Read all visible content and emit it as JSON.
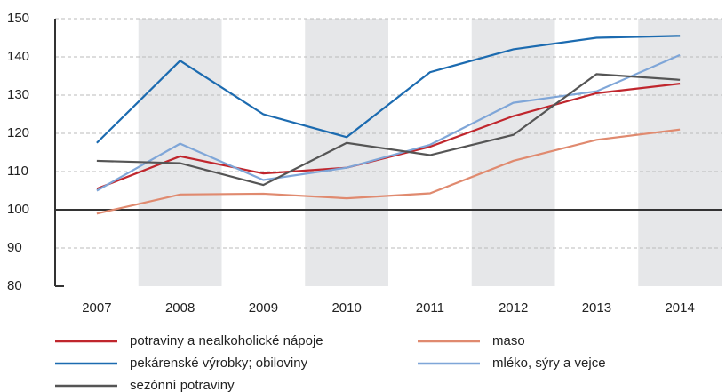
{
  "chart_data": {
    "type": "line",
    "categories": [
      "2007",
      "2008",
      "2009",
      "2010",
      "2011",
      "2012",
      "2013",
      "2014"
    ],
    "series": [
      {
        "name": "potraviny a nealkoholické nápoje",
        "color": "#c0262d",
        "values": [
          105.5,
          114,
          109.5,
          111,
          116.5,
          124.5,
          130.5,
          133
        ]
      },
      {
        "name": "maso",
        "color": "#e08a6f",
        "values": [
          99,
          104,
          104.2,
          103,
          104.3,
          112.8,
          118.3,
          121
        ]
      },
      {
        "name": "pekárenské výrobky; obiloviny",
        "color": "#1c6bb0",
        "values": [
          117.5,
          139,
          125,
          119,
          136,
          142,
          145,
          145.5
        ]
      },
      {
        "name": "mléko, sýry a vejce",
        "color": "#7fa6d8",
        "values": [
          105,
          117.3,
          107.8,
          111,
          117,
          128,
          131,
          140.5
        ]
      },
      {
        "name": "sezónní potraviny",
        "color": "#555555",
        "values": [
          112.8,
          112.2,
          106.5,
          117.5,
          114.3,
          119.6,
          135.5,
          134
        ]
      }
    ],
    "ylim": [
      80,
      150
    ],
    "yticks": [
      80,
      90,
      100,
      110,
      120,
      130,
      140,
      150
    ],
    "grid": true,
    "baseline": 100,
    "shaded_alternate": true,
    "legend": "bottom"
  }
}
